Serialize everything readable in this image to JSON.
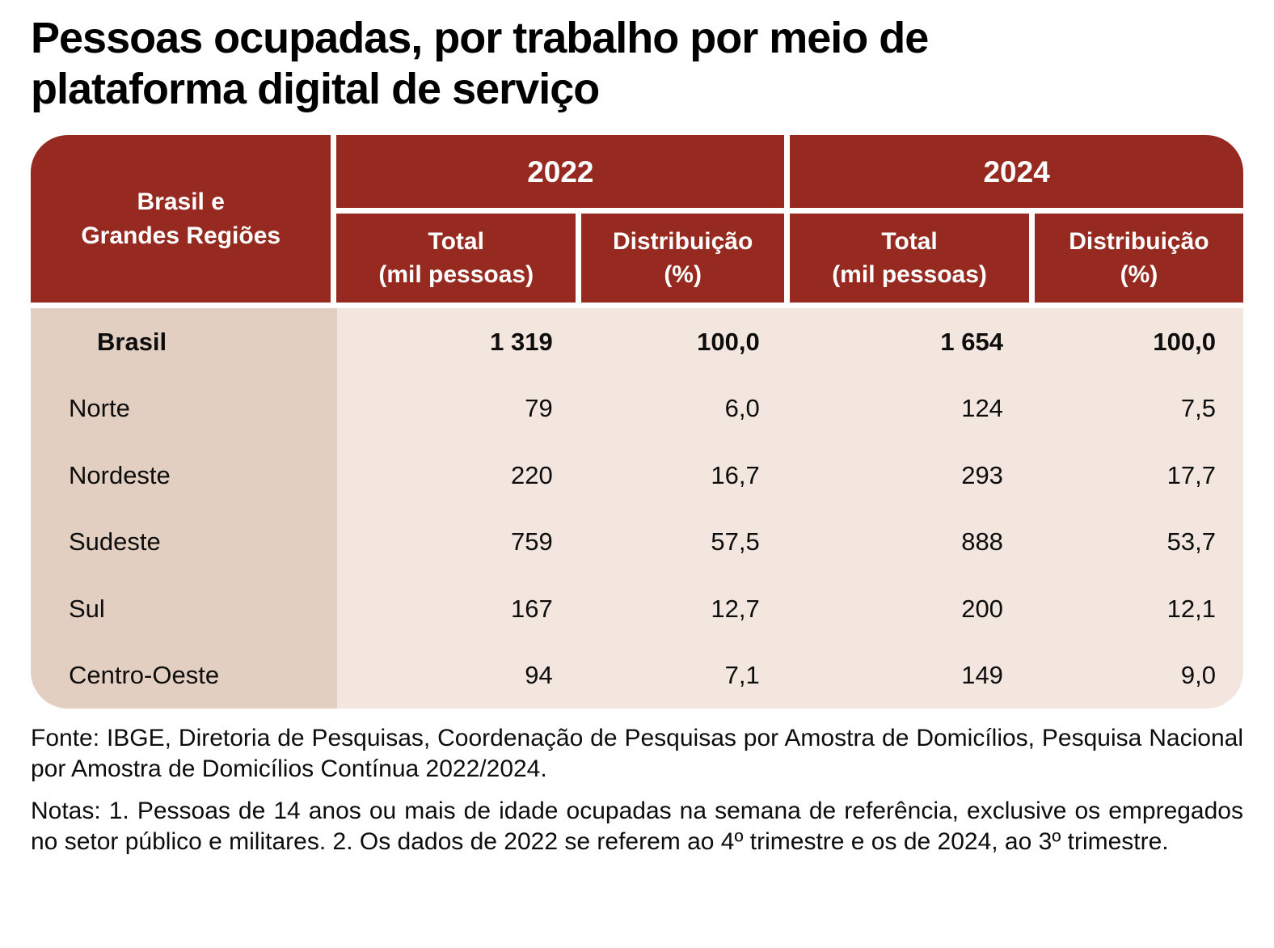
{
  "page": {
    "title_line1": "Pessoas ocupadas, por trabalho por meio de",
    "title_line2": "plataforma digital de serviço"
  },
  "table": {
    "corner_line1": "Brasil e",
    "corner_line2": "Grandes Regiões",
    "group_2022": "2022",
    "group_2024": "2024",
    "sub_total_line1": "Total",
    "sub_total_line2": "(mil pessoas)",
    "sub_dist_line1": "Distribuição",
    "sub_dist_line2": "(%)",
    "rows": [
      {
        "region": "Brasil",
        "bold": true,
        "values": [
          "1 319",
          "100,0",
          "1 654",
          "100,0"
        ]
      },
      {
        "region": "Norte",
        "bold": false,
        "values": [
          "79",
          "6,0",
          "124",
          "7,5"
        ]
      },
      {
        "region": "Nordeste",
        "bold": false,
        "values": [
          "220",
          "16,7",
          "293",
          "17,7"
        ]
      },
      {
        "region": "Sudeste",
        "bold": false,
        "values": [
          "759",
          "57,5",
          "888",
          "53,7"
        ]
      },
      {
        "region": "Sul",
        "bold": false,
        "values": [
          "167",
          "12,7",
          "200",
          "12,1"
        ]
      },
      {
        "region": "Centro-Oeste",
        "bold": false,
        "values": [
          "94",
          "7,1",
          "149",
          "9,0"
        ]
      }
    ]
  },
  "footer": {
    "source": "Fonte: IBGE, Diretoria de Pesquisas, Coordenação de Pesquisas por Amostra de Domicílios, Pesquisa Nacional por Amostra de Domicílios Contínua 2022/2024.",
    "notes": "Notas: 1. Pessoas de 14 anos ou mais de idade ocupadas na semana de referência, exclusive os empregados no setor público e militares. 2. Os dados de 2022 se referem ao 4º trimestre e os de 2024, ao 3º trimestre."
  },
  "colors": {
    "header_bg": "#962A20",
    "header_text": "#FFFFFF",
    "region_col_bg": "#E2CFC1",
    "data_bg": "#F3E6DE",
    "text": "#0D0D0D"
  },
  "chart_data": {
    "type": "table",
    "title": "Pessoas ocupadas, por trabalho por meio de plataforma digital de serviço",
    "categories": [
      "Brasil",
      "Norte",
      "Nordeste",
      "Sudeste",
      "Sul",
      "Centro-Oeste"
    ],
    "series": [
      {
        "name": "2022 Total (mil pessoas)",
        "values": [
          1319,
          79,
          220,
          759,
          167,
          94
        ]
      },
      {
        "name": "2022 Distribuição (%)",
        "values": [
          100.0,
          6.0,
          16.7,
          57.5,
          12.7,
          7.1
        ]
      },
      {
        "name": "2024 Total (mil pessoas)",
        "values": [
          1654,
          124,
          293,
          888,
          200,
          149
        ]
      },
      {
        "name": "2024 Distribuição (%)",
        "values": [
          100.0,
          7.5,
          17.7,
          53.7,
          12.1,
          9.0
        ]
      }
    ],
    "source": "IBGE, Diretoria de Pesquisas, Coordenação de Pesquisas por Amostra de Domicílios, Pesquisa Nacional por Amostra de Domicílios Contínua 2022/2024"
  }
}
